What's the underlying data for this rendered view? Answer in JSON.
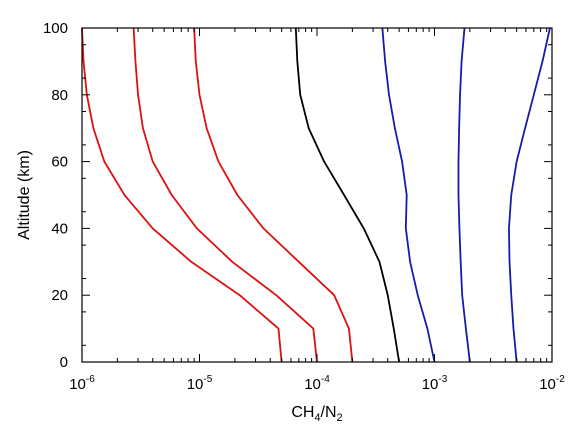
{
  "chart_data": {
    "type": "line",
    "xscale": "log",
    "xlim": [
      1e-06,
      0.01
    ],
    "ylim": [
      0,
      100
    ],
    "grid": false,
    "legend": "none",
    "xlabel": {
      "base": "CH",
      "sub1": "4",
      "mid": "/N",
      "sub2": "2"
    },
    "ylabel": "Altitude (km)",
    "x_ticks": [
      {
        "value": 1e-06,
        "base": "10",
        "exp": "-6"
      },
      {
        "value": 1e-05,
        "base": "10",
        "exp": "-5"
      },
      {
        "value": 0.0001,
        "base": "10",
        "exp": "-4"
      },
      {
        "value": 0.001,
        "base": "10",
        "exp": "-3"
      },
      {
        "value": 0.01,
        "base": "10",
        "exp": "-2"
      }
    ],
    "y_ticks": [
      {
        "value": 0,
        "label": "0"
      },
      {
        "value": 20,
        "label": "20"
      },
      {
        "value": 40,
        "label": "40"
      },
      {
        "value": 60,
        "label": "60"
      },
      {
        "value": 80,
        "label": "80"
      },
      {
        "value": 100,
        "label": "100"
      }
    ],
    "series": [
      {
        "color": "#dd1111",
        "points": [
          [
            5e-05,
            0
          ],
          [
            4.7e-05,
            10
          ],
          [
            2.2e-05,
            20
          ],
          [
            8.5e-06,
            30
          ],
          [
            4e-06,
            40
          ],
          [
            2.3e-06,
            50
          ],
          [
            1.55e-06,
            60
          ],
          [
            1.25e-06,
            70
          ],
          [
            1.1e-06,
            80
          ],
          [
            1.03e-06,
            90
          ],
          [
            1e-06,
            100
          ]
        ]
      },
      {
        "color": "#dd1111",
        "points": [
          [
            0.0001,
            0
          ],
          [
            9.3e-05,
            10
          ],
          [
            4.5e-05,
            20
          ],
          [
            1.9e-05,
            30
          ],
          [
            9.5e-06,
            40
          ],
          [
            5.8e-06,
            50
          ],
          [
            4e-06,
            60
          ],
          [
            3.3e-06,
            70
          ],
          [
            3e-06,
            80
          ],
          [
            2.85e-06,
            90
          ],
          [
            2.75e-06,
            100
          ]
        ]
      },
      {
        "color": "#dd1111",
        "points": [
          [
            0.0002,
            0
          ],
          [
            0.000187,
            10
          ],
          [
            0.00014,
            20
          ],
          [
            7e-05,
            30
          ],
          [
            3.5e-05,
            40
          ],
          [
            2.1e-05,
            50
          ],
          [
            1.45e-05,
            60
          ],
          [
            1.15e-05,
            70
          ],
          [
            1e-05,
            80
          ],
          [
            9.3e-06,
            90
          ],
          [
            9e-06,
            100
          ]
        ]
      },
      {
        "color": "#000000",
        "points": [
          [
            0.0005,
            0
          ],
          [
            0.00045,
            10
          ],
          [
            0.0004,
            20
          ],
          [
            0.00034,
            30
          ],
          [
            0.00025,
            40
          ],
          [
            0.00017,
            50
          ],
          [
            0.000115,
            60
          ],
          [
            8.5e-05,
            70
          ],
          [
            7.2e-05,
            80
          ],
          [
            6.8e-05,
            90
          ],
          [
            6.6e-05,
            100
          ]
        ]
      },
      {
        "color": "#1a1aaa",
        "points": [
          [
            0.001,
            0
          ],
          [
            0.00087,
            10
          ],
          [
            0.00072,
            20
          ],
          [
            0.00062,
            30
          ],
          [
            0.00057,
            40
          ],
          [
            0.00058,
            50
          ],
          [
            0.00053,
            60
          ],
          [
            0.00046,
            70
          ],
          [
            0.00041,
            80
          ],
          [
            0.00038,
            90
          ],
          [
            0.00036,
            100
          ]
        ]
      },
      {
        "color": "#1a1aaa",
        "points": [
          [
            0.002,
            0
          ],
          [
            0.00185,
            10
          ],
          [
            0.00172,
            20
          ],
          [
            0.00167,
            30
          ],
          [
            0.00163,
            40
          ],
          [
            0.0016,
            50
          ],
          [
            0.0016,
            60
          ],
          [
            0.00162,
            70
          ],
          [
            0.00165,
            80
          ],
          [
            0.0017,
            90
          ],
          [
            0.0018,
            100
          ]
        ]
      },
      {
        "color": "#1a1aaa",
        "points": [
          [
            0.005,
            0
          ],
          [
            0.0047,
            10
          ],
          [
            0.0045,
            20
          ],
          [
            0.00435,
            30
          ],
          [
            0.0043,
            40
          ],
          [
            0.0045,
            50
          ],
          [
            0.005,
            60
          ],
          [
            0.0059,
            70
          ],
          [
            0.007,
            80
          ],
          [
            0.0083,
            90
          ],
          [
            0.0096,
            100
          ]
        ]
      }
    ]
  }
}
